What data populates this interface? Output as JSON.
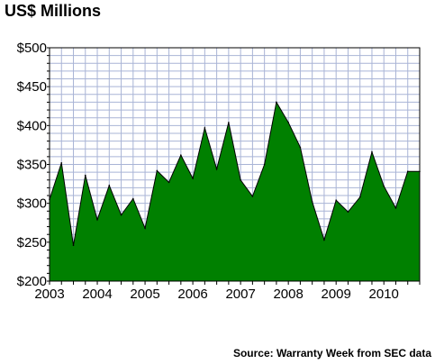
{
  "chart_data": {
    "type": "area",
    "title": "US$ Millions",
    "source": "Source: Warranty Week from SEC data",
    "ylim": [
      200,
      500
    ],
    "y_ticks": [
      "$200",
      "$250",
      "$300",
      "$350",
      "$400",
      "$450",
      "$500"
    ],
    "x_ticks": [
      "2003",
      "2004",
      "2005",
      "2006",
      "2007",
      "2008",
      "2009",
      "2010"
    ],
    "grid": true,
    "colors": {
      "fill": "#008000",
      "outline": "#000000",
      "grid": "#a9b4d6",
      "background": "#ffffff"
    },
    "series": [
      {
        "x": [
          "2003 Q1",
          "2003 Q2",
          "2003 Q3",
          "2003 Q4",
          "2004 Q1",
          "2004 Q2",
          "2004 Q3",
          "2004 Q4",
          "2005 Q1",
          "2005 Q2",
          "2005 Q3",
          "2005 Q4",
          "2006 Q1",
          "2006 Q2",
          "2006 Q3",
          "2006 Q4",
          "2007 Q1",
          "2007 Q2",
          "2007 Q3",
          "2007 Q4",
          "2008 Q1",
          "2008 Q2",
          "2008 Q3",
          "2008 Q4",
          "2009 Q1",
          "2009 Q2",
          "2009 Q3",
          "2009 Q4",
          "2010 Q1",
          "2010 Q2",
          "2010 Q3",
          "2010 Q4"
        ],
        "values": [
          305,
          352,
          246,
          336,
          279,
          323,
          285,
          306,
          268,
          342,
          327,
          362,
          332,
          397,
          344,
          404,
          330,
          309,
          350,
          430,
          404,
          372,
          302,
          253,
          304,
          289,
          308,
          366,
          322,
          294,
          341,
          341
        ]
      }
    ]
  }
}
